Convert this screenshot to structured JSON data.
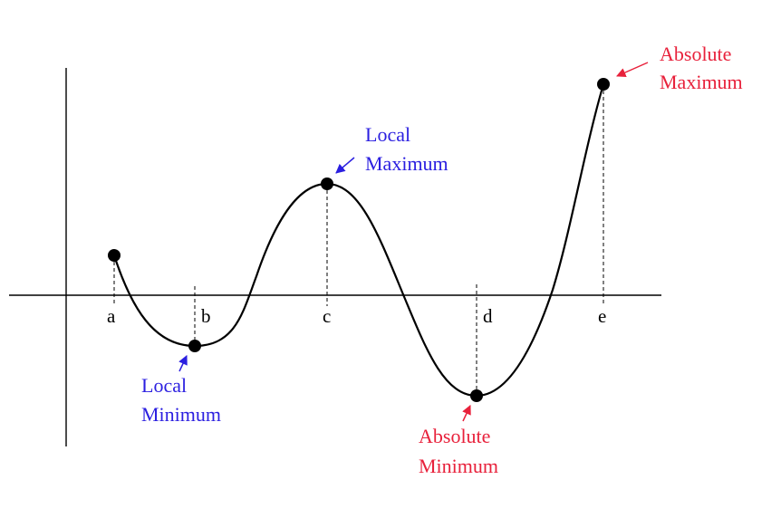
{
  "colors": {
    "local": "#2b1fe0",
    "absolute": "#e8213b",
    "curve": "#000000",
    "axis": "#000000"
  },
  "tick_labels": {
    "a": "a",
    "b": "b",
    "c": "c",
    "d": "d",
    "e": "e"
  },
  "annotations": {
    "local_min": [
      "Local",
      "Minimum"
    ],
    "local_max": [
      "Local",
      "Maximum"
    ],
    "abs_min": [
      "Absolute",
      "Minimum"
    ],
    "abs_max": [
      "Absolute",
      "Maximum"
    ]
  }
}
